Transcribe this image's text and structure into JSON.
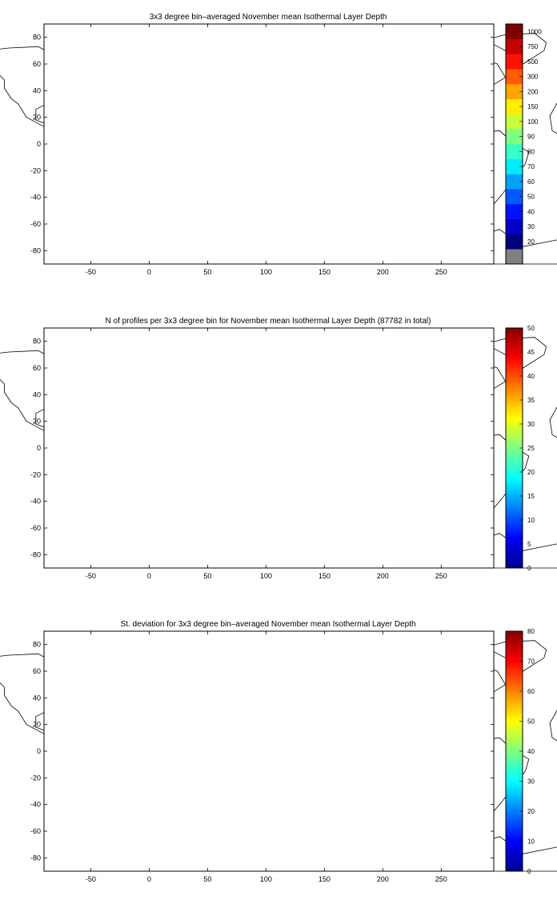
{
  "panels": [
    {
      "id": "mean",
      "title": "3x3 degree bin–averaged November mean Isothermal Layer Depth",
      "colorbar_labels": [
        "20",
        "30",
        "40",
        "50",
        "60",
        "70",
        "80",
        "90",
        "100",
        "150",
        "200",
        "300",
        "500",
        "750",
        "1000"
      ],
      "colormap": "jet",
      "missing_color": "#808080"
    },
    {
      "id": "count",
      "title": "N of profiles per 3x3 degree bin for November mean Isothermal Layer Depth  (87782 in total)",
      "colorbar_labels": [
        "0",
        "5",
        "10",
        "15",
        "20",
        "25",
        "30",
        "35",
        "40",
        "45",
        "50"
      ],
      "colormap": "jet"
    },
    {
      "id": "std",
      "title": "St. deviation for 3x3 degree bin–averaged November mean Isothermal Layer Depth",
      "colorbar_labels": [
        "0",
        "10",
        "20",
        "30",
        "40",
        "50",
        "60",
        "70",
        "80"
      ],
      "colormap": "jet"
    }
  ],
  "axes": {
    "x_ticks": [
      "-50",
      "0",
      "50",
      "100",
      "150",
      "200",
      "250"
    ],
    "y_ticks": [
      "80",
      "60",
      "40",
      "20",
      "0",
      "-20",
      "-40",
      "-60",
      "-80"
    ],
    "xlim": [
      -90,
      295
    ],
    "ylim": [
      -90,
      90
    ],
    "grid": "dotted"
  },
  "chart_data": [
    {
      "type": "heatmap",
      "title": "3x3 degree bin–averaged November mean Isothermal Layer Depth",
      "bin_size_deg": 3,
      "xlim": [
        -90,
        295
      ],
      "ylim": [
        -90,
        90
      ],
      "scale_values": [
        20,
        30,
        40,
        50,
        60,
        70,
        80,
        90,
        100,
        150,
        200,
        300,
        500,
        750,
        1000
      ]
    },
    {
      "type": "heatmap",
      "title": "N of profiles per 3x3 degree bin for November mean Isothermal Layer Depth  (87782 in total)",
      "bin_size_deg": 3,
      "xlim": [
        -90,
        295
      ],
      "ylim": [
        -90,
        90
      ],
      "scale_range": [
        0,
        50
      ],
      "total_profiles": 87782
    },
    {
      "type": "heatmap",
      "title": "St. deviation for 3x3 degree bin–averaged November mean Isothermal Layer Depth",
      "bin_size_deg": 3,
      "xlim": [
        -90,
        295
      ],
      "ylim": [
        -90,
        90
      ],
      "scale_range": [
        0,
        80
      ]
    }
  ]
}
